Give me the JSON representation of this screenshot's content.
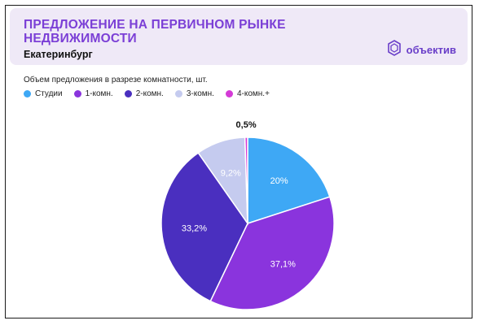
{
  "header": {
    "title": "ПРЕДЛОЖЕНИЕ НА ПЕРВИЧНОМ РЫНКЕ НЕДВИЖИМОСТИ",
    "city": "Екатеринбург",
    "logo_text": "объектив",
    "logo_icon": "objektiv-logo-icon"
  },
  "chart_data": {
    "type": "pie",
    "title": "Объем предложения в разрезе комнатности, шт.",
    "legend_position": "top-left",
    "slices": [
      {
        "name": "Студии",
        "value": 20,
        "label": "20%",
        "color": "#3ea8f5"
      },
      {
        "name": "1-комн.",
        "value": 37.1,
        "label": "37,1%",
        "color": "#8a34dd"
      },
      {
        "name": "2-комн.",
        "value": 33.2,
        "label": "33,2%",
        "color": "#4a2fbf"
      },
      {
        "name": "3-комн.",
        "value": 9.2,
        "label": "9,2%",
        "color": "#c5cbef"
      },
      {
        "name": "4-комн.+",
        "value": 0.5,
        "label": "0,5%",
        "color": "#d43ad6"
      }
    ]
  }
}
